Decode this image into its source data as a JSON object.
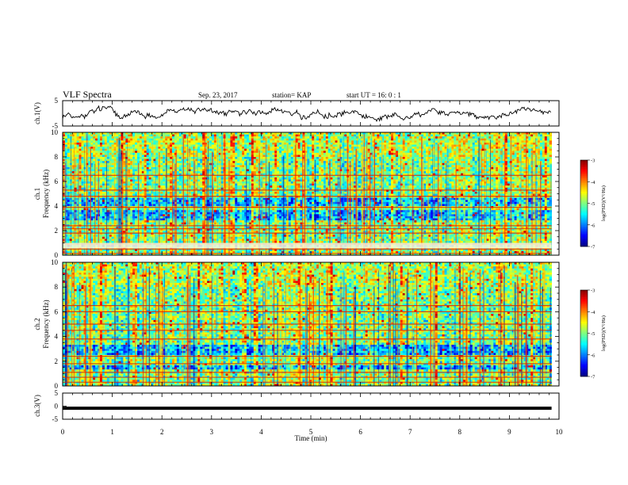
{
  "header": {
    "title": "VLF Spectra",
    "date": "Sep. 23, 2017",
    "station": "station= KAP",
    "start": "start  UT =   16: 0  : 1"
  },
  "chart_data": [
    {
      "type": "line",
      "panel": "ch1-waveform",
      "ylabel": "ch.1(V)",
      "ylim": [
        -5,
        5
      ],
      "yticks": [
        "5",
        "-5"
      ],
      "xlim": [
        0,
        10
      ],
      "data_end_min": 9.85,
      "style": {
        "line_color": "#000000"
      },
      "note_series": "noisy waveform, amplitude roughly -3 to 3 V"
    },
    {
      "type": "heatmap",
      "panel": "ch1-spectrogram",
      "ylabel": "ch.1\nFrequency (kHz)",
      "ylim": [
        0,
        10
      ],
      "yticks": [
        "0",
        "2",
        "4",
        "6",
        "8",
        "10"
      ],
      "xlim": [
        0,
        10
      ],
      "data_end_min": 9.85,
      "colorbar": {
        "label": "log(PSD)(V²/Hz)",
        "range": [
          -7,
          -3
        ],
        "ticks": [
          "-3",
          "-4",
          "-5",
          "-6",
          "-7"
        ]
      },
      "horizontal_lines_khz": [
        0.15,
        0.5,
        0.9,
        1.8,
        2.15,
        2.4,
        3.9,
        4.8,
        5.3,
        6.5
      ],
      "weak_bands_khz": [
        [
          2.8,
          3.6
        ],
        [
          4.0,
          4.6
        ],
        [
          0.6,
          1.0
        ]
      ]
    },
    {
      "type": "heatmap",
      "panel": "ch2-spectrogram",
      "ylabel": "ch.2\nFrequency (kHz)",
      "ylim": [
        0,
        10
      ],
      "yticks": [
        "0",
        "2",
        "4",
        "6",
        "8",
        "10"
      ],
      "xlim": [
        0,
        10
      ],
      "data_end_min": 9.85,
      "colorbar": {
        "label": "log(PSD)(V²/Hz)",
        "range": [
          -7,
          -3
        ],
        "ticks": [
          "-3",
          "-4",
          "-5",
          "-6",
          "-7"
        ]
      },
      "horizontal_lines_khz": [
        0.3,
        0.7,
        1.1,
        1.8,
        2.4,
        3.8,
        4.5,
        5.0,
        6.0,
        6.5
      ],
      "weak_bands_khz": [
        [
          2.5,
          3.4
        ],
        [
          1.3,
          1.7
        ]
      ]
    },
    {
      "type": "line",
      "panel": "ch3-waveform",
      "ylabel": "ch.3(V)",
      "ylim": [
        -5,
        5
      ],
      "yticks": [
        "5",
        "0",
        "-5"
      ],
      "xlim": [
        0,
        10
      ],
      "xlabel": "Time (min)",
      "xticks": [
        "0",
        "1",
        "2",
        "3",
        "4",
        "5",
        "6",
        "7",
        "8",
        "9",
        "10"
      ],
      "data_end_min": 9.85,
      "flat_value_v": -0.8
    }
  ]
}
